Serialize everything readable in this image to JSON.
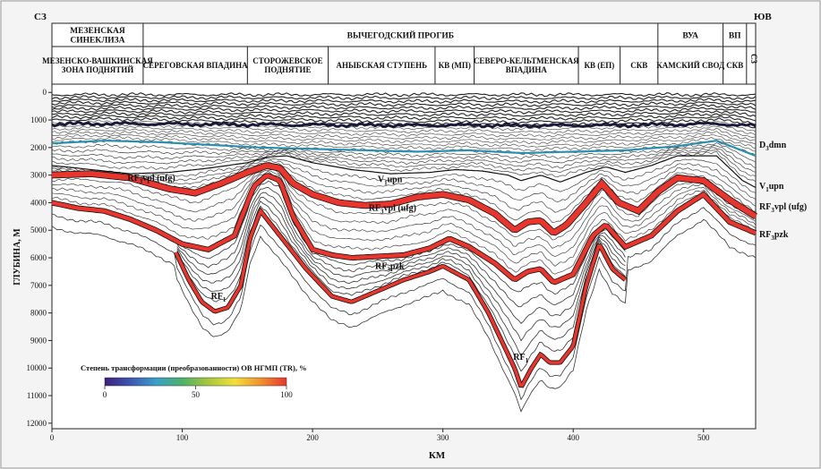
{
  "chart_data": {
    "type": "line",
    "subtype": "geological depth cross-section",
    "xlabel": "КМ",
    "ylabel": "ГЛУБИНА, М",
    "xlim": [
      0,
      540
    ],
    "ylim": [
      12200,
      -300
    ],
    "x_ticks": [
      0,
      100,
      200,
      300,
      400,
      500
    ],
    "y_ticks": [
      0,
      1000,
      2000,
      3000,
      4000,
      5000,
      6000,
      7000,
      8000,
      9000,
      10000,
      11000,
      12000
    ],
    "corner_labels": {
      "left": "СЗ",
      "right": "ЮВ"
    },
    "header": {
      "top_row": [
        {
          "label": "МЕЗЕНСКАЯ СИНЕКЛИЗА",
          "x_range": [
            0,
            70
          ]
        },
        {
          "label": "ВЫЧЕГОДСКИЙ ПРОГИБ",
          "x_range": [
            70,
            465
          ]
        },
        {
          "label": "ВУА",
          "x_range": [
            465,
            515
          ]
        },
        {
          "label": "ВП",
          "x_range": [
            515,
            533
          ]
        }
      ],
      "bottom_row": [
        {
          "label": "МЕЗЕНСКО-ВАШКИНСКАЯ ЗОНА ПОДНЯТИЙ",
          "x_range": [
            0,
            70
          ]
        },
        {
          "label": "СЕРЕГОВСКАЯ ВПАДИНА",
          "x_range": [
            70,
            150
          ]
        },
        {
          "label": "СТОРОЖЕВСКОЕ ПОДНЯТИЕ",
          "x_range": [
            150,
            212
          ]
        },
        {
          "label": "АНЫБСКАЯ СТУПЕНЬ",
          "x_range": [
            212,
            294
          ]
        },
        {
          "label": "КВ (МП)",
          "x_range": [
            294,
            324
          ]
        },
        {
          "label": "СЕВЕРО-КЕЛЬТМЕНСКАЯ ВПАДИНА",
          "x_range": [
            324,
            404
          ]
        },
        {
          "label": "КВ (ЕП)",
          "x_range": [
            404,
            436
          ]
        },
        {
          "label": "СКВ",
          "x_range": [
            436,
            465
          ]
        },
        {
          "label": "КАМСКИЙ СВОД",
          "x_range": [
            465,
            515
          ]
        },
        {
          "label": "СКВ",
          "x_range": [
            515,
            533
          ]
        }
      ],
      "side_label": "С3"
    },
    "horizons": [
      {
        "name": "D3dmn",
        "label": "D",
        "sub": "3",
        "suffix": "dmn",
        "x": [
          0,
          40,
          80,
          120,
          160,
          200,
          240,
          280,
          320,
          360,
          400,
          440,
          480,
          510,
          540
        ],
        "depth": [
          1850,
          1750,
          1800,
          1900,
          2000,
          2050,
          2100,
          2150,
          2100,
          2200,
          2150,
          2100,
          1950,
          1750,
          2300
        ]
      },
      {
        "name": "V1upn",
        "label": "V",
        "sub": "1",
        "suffix": "upn",
        "x": [
          0,
          30,
          60,
          90,
          120,
          150,
          165,
          180,
          200,
          230,
          260,
          290,
          310,
          330,
          350,
          360,
          375,
          390,
          410,
          425,
          440,
          460,
          480,
          510,
          530,
          540
        ],
        "depth": [
          2650,
          2800,
          2950,
          2900,
          2750,
          2550,
          2350,
          2300,
          2550,
          2800,
          2950,
          2900,
          2800,
          2850,
          3000,
          3200,
          3000,
          3250,
          2900,
          2700,
          2900,
          2650,
          2300,
          2300,
          3200,
          3450
        ]
      },
      {
        "name": "RF3vpl_ufg",
        "label": "RF",
        "sub": "3",
        "suffix": "vpl (ufg)",
        "x": [
          0,
          30,
          60,
          90,
          110,
          130,
          150,
          165,
          175,
          185,
          200,
          220,
          240,
          260,
          280,
          300,
          320,
          340,
          355,
          365,
          375,
          385,
          395,
          410,
          422,
          435,
          450,
          465,
          480,
          500,
          520,
          540
        ],
        "depth": [
          3000,
          2950,
          3100,
          3500,
          3650,
          3300,
          2900,
          2650,
          2750,
          3300,
          3700,
          4000,
          4100,
          4050,
          3800,
          3700,
          3900,
          4400,
          5000,
          4700,
          4650,
          5100,
          4800,
          4000,
          3300,
          4000,
          4300,
          3600,
          3100,
          3200,
          3900,
          4500
        ]
      },
      {
        "name": "RF3pzk",
        "label": "RF",
        "sub": "3",
        "suffix": "pzk",
        "x": [
          0,
          20,
          40,
          60,
          80,
          100,
          120,
          140,
          155,
          165,
          175,
          185,
          200,
          215,
          230,
          250,
          270,
          290,
          305,
          320,
          340,
          355,
          365,
          375,
          385,
          400,
          415,
          425,
          440,
          460,
          480,
          500,
          520,
          540
        ],
        "depth": [
          4000,
          4200,
          4300,
          4600,
          5000,
          5500,
          5700,
          5200,
          3400,
          3000,
          3200,
          4500,
          5700,
          5900,
          6000,
          5950,
          5900,
          5650,
          5300,
          5600,
          6200,
          6800,
          6500,
          6400,
          6900,
          6600,
          5200,
          4800,
          5600,
          5200,
          4300,
          3700,
          4700,
          5100
        ]
      },
      {
        "name": "RF1",
        "label": "RF",
        "sub": "1",
        "suffix": "",
        "x": [
          95,
          105,
          115,
          125,
          135,
          145,
          152,
          160,
          175,
          195,
          215,
          230,
          250,
          270,
          290,
          300,
          320,
          335,
          345,
          355,
          360,
          368,
          375,
          382,
          390,
          400,
          410,
          420,
          430,
          440
        ],
        "depth": [
          5800,
          6800,
          7600,
          7950,
          7800,
          7000,
          5300,
          4300,
          5200,
          6400,
          7400,
          7600,
          7200,
          6800,
          6500,
          6300,
          6800,
          8000,
          9000,
          10000,
          10700,
          10000,
          9500,
          9800,
          9800,
          9200,
          7000,
          5500,
          6400,
          6800
        ]
      }
    ],
    "color_scale": {
      "title": "Степень трансформации (преобразованности) ОВ НГМП (TR), %",
      "min": 0,
      "max": 100,
      "ticks": [
        0,
        50,
        100
      ],
      "colors": [
        "#3b1f7a",
        "#3d57b4",
        "#3aa0c8",
        "#4fb06a",
        "#a8c83c",
        "#f0e03a",
        "#f0922e",
        "#e8362e"
      ]
    }
  }
}
